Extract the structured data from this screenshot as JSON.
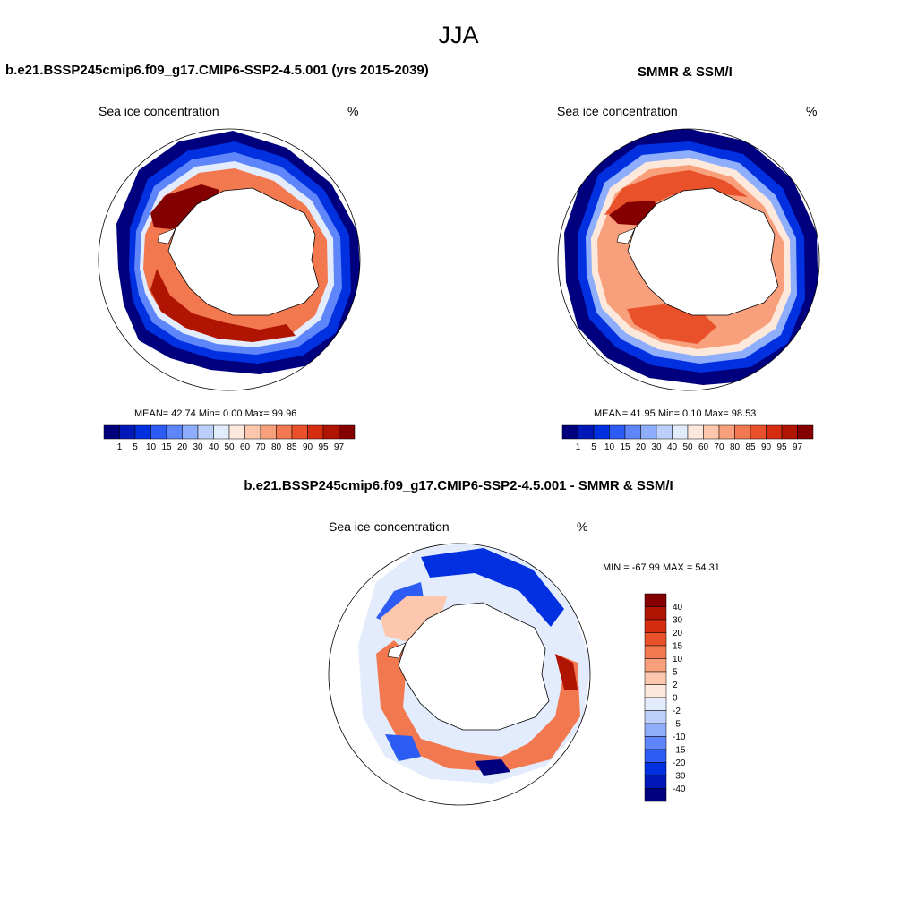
{
  "title": "JJA",
  "colors": {
    "seq": [
      "#00007f",
      "#0018b8",
      "#0030e0",
      "#2c5cf4",
      "#5e86fa",
      "#8eaefc",
      "#bdd0fc",
      "#e3ecfd",
      "#fde8dc",
      "#fcc7ad",
      "#f8a07c",
      "#f27850",
      "#e8512a",
      "#d42d10",
      "#b01504",
      "#840000"
    ],
    "diff": [
      "#00007f",
      "#0018b8",
      "#0030e0",
      "#2c5cf4",
      "#5e86fa",
      "#8eaefc",
      "#bdd0fc",
      "#e3ecfd",
      "#fde8dc",
      "#fcc7ad",
      "#f8a07c",
      "#f27850",
      "#e8512a",
      "#d42d10",
      "#b01504",
      "#840000"
    ]
  },
  "panels": [
    {
      "title": "b.e21.BSSP245cmip6.f09_g17.CMIP6-SSP2-4.5.001 (yrs 2015-2039)",
      "variable": "Sea ice concentration",
      "units": "%",
      "stats": "MEAN=  42.74  Min=   0.00  Max=  99.96"
    },
    {
      "title": "SMMR & SSM/I",
      "variable": "Sea ice concentration",
      "units": "%",
      "stats": "MEAN=  41.95  Min=   0.10  Max=  98.53"
    },
    {
      "title": "b.e21.BSSP245cmip6.f09_g17.CMIP6-SSP2-4.5.001 - SMMR & SSM/I",
      "variable": "Sea ice concentration",
      "units": "%",
      "stats": "MIN = -67.99 MAX =  54.31"
    }
  ],
  "chart_data": [
    {
      "type": "heatmap",
      "projection": "south-polar-stereographic",
      "title": "b.e21.BSSP245cmip6.f09_g17.CMIP6-SSP2-4.5.001 (yrs 2015-2039)",
      "subtitle": "Sea ice concentration",
      "units": "%",
      "colorbar_levels": [
        "1",
        "5",
        "10",
        "15",
        "20",
        "30",
        "40",
        "50",
        "60",
        "70",
        "80",
        "85",
        "90",
        "95",
        "97"
      ],
      "mean": 42.74,
      "min": 0.0,
      "max": 99.96
    },
    {
      "type": "heatmap",
      "projection": "south-polar-stereographic",
      "title": "SMMR & SSM/I",
      "subtitle": "Sea ice concentration",
      "units": "%",
      "colorbar_levels": [
        "1",
        "5",
        "10",
        "15",
        "20",
        "30",
        "40",
        "50",
        "60",
        "70",
        "80",
        "85",
        "90",
        "95",
        "97"
      ],
      "mean": 41.95,
      "min": 0.1,
      "max": 98.53
    },
    {
      "type": "heatmap",
      "projection": "south-polar-stereographic",
      "title": "b.e21.BSSP245cmip6.f09_g17.CMIP6-SSP2-4.5.001 - SMMR & SSM/I",
      "subtitle": "Sea ice concentration",
      "units": "%",
      "colorbar_levels": [
        "40",
        "30",
        "20",
        "15",
        "10",
        "5",
        "2",
        "0",
        "-2",
        "-5",
        "-10",
        "-15",
        "-20",
        "-30",
        "-40"
      ],
      "min": -67.99,
      "max": 54.31
    }
  ]
}
